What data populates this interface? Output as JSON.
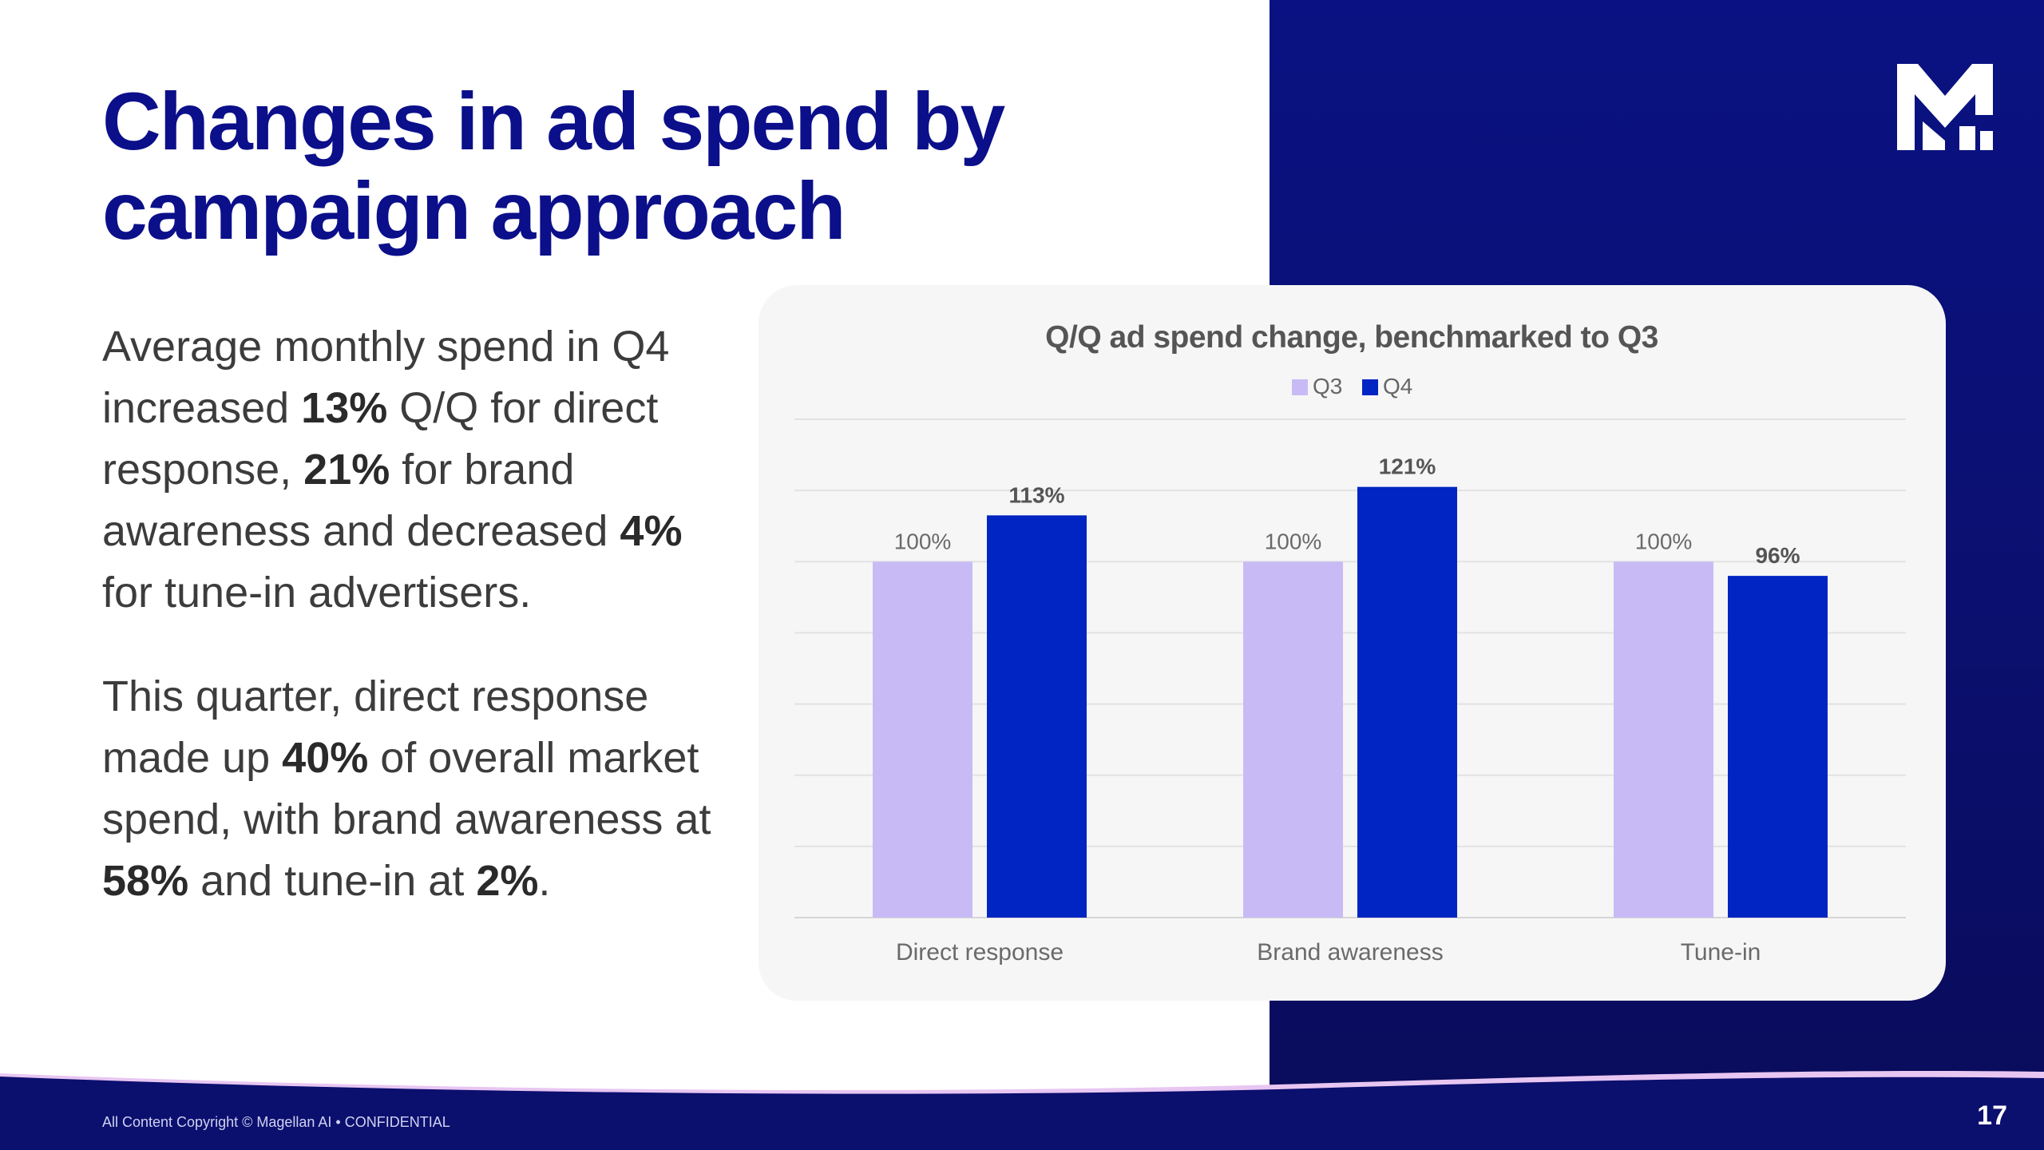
{
  "slide": {
    "title_line1": "Changes in ad spend by",
    "title_line2": "campaign approach",
    "p1": {
      "t1": "Average monthly spend in Q4 increased ",
      "b1": "13%",
      "t2": " Q/Q for direct response, ",
      "b2": "21%",
      "t3": " for brand awareness and decreased ",
      "b3": "4%",
      "t4": " for tune-in advertisers."
    },
    "p2": {
      "t1": "This quarter, direct response made up ",
      "b1": "40%",
      "t2": " of overall market spend, with brand awareness at ",
      "b2": "58%",
      "t3": " and tune-in at ",
      "b3": "2%",
      "t4": "."
    },
    "footer": "All Content Copyright © Magellan AI • CONFIDENTIAL",
    "page_number": "17",
    "colors": {
      "title": "#0b0f8a",
      "panel": "#0a1283",
      "q3": "#c8bbf5",
      "q4": "#0025c2"
    }
  },
  "chart_data": {
    "type": "bar",
    "title": "Q/Q ad spend change, benchmarked to Q3",
    "categories": [
      "Direct response",
      "Brand awareness",
      "Tune-in"
    ],
    "series": [
      {
        "name": "Q3",
        "values": [
          100,
          100,
          100
        ],
        "labels": [
          "100%",
          "100%",
          "100%"
        ],
        "color": "#c8bbf5"
      },
      {
        "name": "Q4",
        "values": [
          113,
          121,
          96
        ],
        "labels": [
          "113%",
          "121%",
          "96%"
        ],
        "color": "#0025c2"
      }
    ],
    "ylim": [
      0,
      140
    ],
    "grid_step": 20,
    "grid": true,
    "legend": "top-center",
    "xlabel": "",
    "ylabel": ""
  }
}
